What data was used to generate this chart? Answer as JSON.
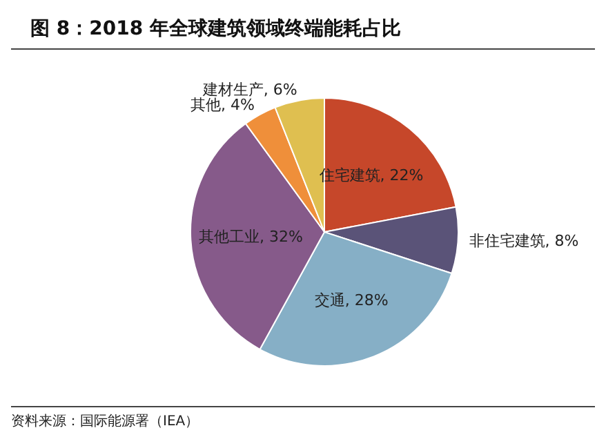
{
  "chart_data": {
    "type": "pie",
    "title": "图 8：2018 年全球建筑领域终端能耗占比",
    "categories": [
      "住宅建筑",
      "非住宅建筑",
      "交通",
      "其他工业",
      "其他",
      "建材生产"
    ],
    "values": [
      22,
      8,
      28,
      32,
      4,
      6
    ],
    "value_labels": [
      "22%",
      "8%",
      "28%",
      "32%",
      "4%",
      "6%"
    ],
    "colors": [
      "#c6472a",
      "#5a5378",
      "#86afc6",
      "#865a8a",
      "#ef8f3a",
      "#dfbf50"
    ],
    "annotations": [
      "资料来源：国际能源署（IEA）"
    ]
  }
}
